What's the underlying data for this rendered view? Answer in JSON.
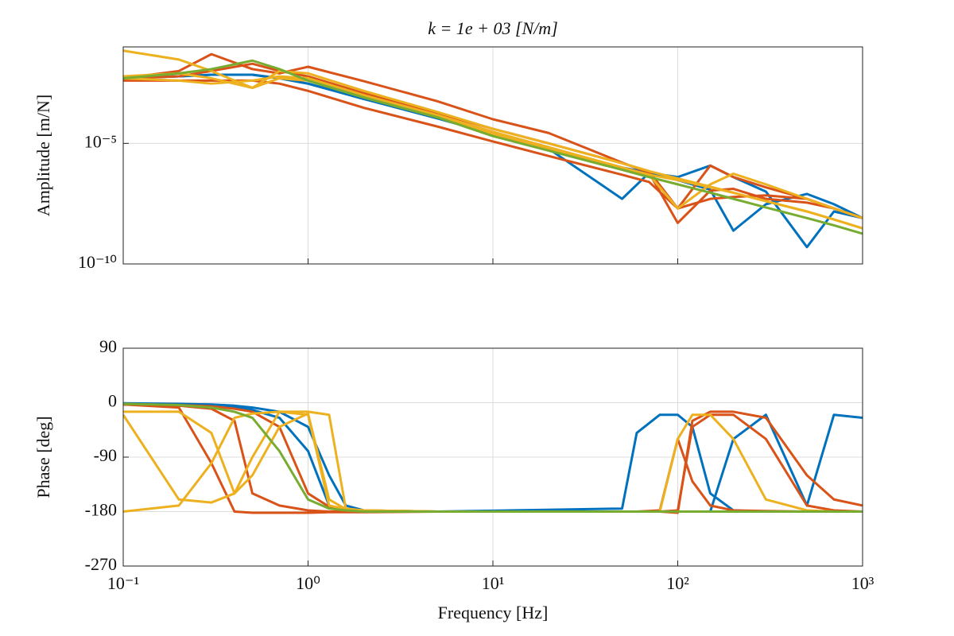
{
  "chart_data": [
    {
      "type": "line",
      "title": "k = 1e + 03 [N/m]",
      "ylabel": "Amplitude [m/N]",
      "xscale": "log",
      "yscale": "log",
      "grid": true,
      "xlim": [
        0.1,
        1000
      ],
      "ylim": [
        1e-10,
        0.1
      ],
      "xticks": [
        0.1,
        1,
        10,
        100,
        1000
      ],
      "yticks": [
        {
          "value": 1e-10,
          "label": "10⁻¹⁰"
        },
        {
          "value": 1e-05,
          "label": "10⁻⁵"
        }
      ],
      "x": [
        0.1,
        0.2,
        0.3,
        0.5,
        0.7,
        1,
        2,
        5,
        10,
        20,
        50,
        70,
        100,
        150,
        200,
        300,
        500,
        700,
        1000
      ],
      "series": [
        {
          "color": "#0072bd",
          "values": [
            0.005,
            0.006,
            0.007,
            0.007,
            0.005,
            0.003,
            0.0007,
            0.00011,
            2.5e-05,
            6e-06,
            5e-08,
            6e-07,
            4e-07,
            1.2e-06,
            4e-07,
            1e-07,
            5e-10,
            1.5e-08,
            8e-09
          ]
        },
        {
          "color": "#0072bd",
          "values": [
            0.005,
            0.006,
            0.007,
            0.007,
            0.005,
            0.003,
            0.0007,
            0.00011,
            2.5e-05,
            6e-06,
            1e-06,
            6e-07,
            3e-07,
            1.2e-07,
            2.4e-09,
            3e-08,
            8e-08,
            3e-08,
            8e-09
          ]
        },
        {
          "color": "#d95319",
          "values": [
            0.005,
            0.01,
            0.05,
            0.012,
            0.008,
            0.015,
            0.0038,
            0.00056,
            0.0001,
            2.7e-05,
            1.6e-06,
            6e-07,
            5e-09,
            1.1e-07,
            1.3e-07,
            5e-08,
            3.5e-08,
            2e-08,
            8e-09
          ]
        },
        {
          "color": "#d95319",
          "values": [
            0.005,
            0.006,
            0.01,
            0.02,
            0.01,
            0.006,
            0.0012,
            0.00018,
            4e-05,
            1e-05,
            1.5e-06,
            7e-07,
            2e-08,
            1.2e-06,
            4e-07,
            1.5e-07,
            5e-08,
            2e-08,
            8e-09
          ]
        },
        {
          "color": "#d95319",
          "values": [
            0.004,
            0.004,
            0.004,
            0.004,
            0.003,
            0.0015,
            0.0003,
            5e-05,
            1.2e-05,
            3e-06,
            5e-07,
            2.5e-07,
            2e-08,
            5e-08,
            6e-08,
            7e-08,
            5e-08,
            2e-08,
            8e-09
          ]
        },
        {
          "color": "#edb120",
          "values": [
            0.07,
            0.03,
            0.01,
            0.002,
            0.005,
            0.004,
            0.0008,
            0.00012,
            2.5e-05,
            6e-06,
            1e-06,
            5e-07,
            2e-08,
            2e-07,
            5.5e-07,
            2e-07,
            5e-08,
            2e-08,
            8e-09
          ]
        },
        {
          "color": "#edb120",
          "values": [
            0.005,
            0.004,
            0.003,
            0.004,
            0.006,
            0.005,
            0.001,
            0.00015,
            3e-05,
            7e-06,
            1e-06,
            5e-07,
            3e-07,
            1.5e-07,
            9e-08,
            4e-08,
            1.5e-08,
            7e-09,
            3e-09
          ]
        },
        {
          "color": "#edb120",
          "values": [
            0.006,
            0.008,
            0.005,
            0.002,
            0.01,
            0.008,
            0.0015,
            0.0002,
            4e-05,
            1e-05,
            1.5e-06,
            7e-07,
            3.5e-07,
            1.6e-07,
            9e-08,
            4e-08,
            1.5e-08,
            7e-09,
            3e-09
          ]
        },
        {
          "color": "#77ac30",
          "values": [
            0.005,
            0.008,
            0.012,
            0.027,
            0.012,
            0.004,
            0.0008,
            0.00012,
            2e-05,
            5e-06,
            8e-07,
            4e-07,
            2e-07,
            9e-08,
            5e-08,
            2.2e-08,
            8e-09,
            4e-09,
            1.8e-09
          ]
        }
      ]
    },
    {
      "type": "line",
      "xlabel": "Frequency [Hz]",
      "ylabel": "Phase [deg]",
      "xscale": "log",
      "grid": true,
      "xlim": [
        0.1,
        1000
      ],
      "ylim": [
        -270,
        90
      ],
      "xticks": [
        {
          "value": 0.1,
          "label": "10⁻¹"
        },
        {
          "value": 1,
          "label": "10⁰"
        },
        {
          "value": 10,
          "label": "10¹"
        },
        {
          "value": 100,
          "label": "10²"
        },
        {
          "value": 1000,
          "label": "10³"
        }
      ],
      "yticks": [
        -270,
        -180,
        -90,
        0,
        90
      ],
      "x": [
        0.1,
        0.2,
        0.3,
        0.4,
        0.5,
        0.7,
        1,
        1.3,
        1.6,
        2,
        5,
        50,
        60,
        80,
        100,
        120,
        150,
        200,
        300,
        500,
        700,
        1000
      ],
      "series": [
        {
          "color": "#0072bd",
          "values": [
            -2,
            -3,
            -5,
            -8,
            -12,
            -25,
            -80,
            -170,
            -178,
            -180,
            -180,
            -175,
            -50,
            -20,
            -20,
            -40,
            -150,
            -178,
            -180,
            -180,
            -180,
            -180
          ]
        },
        {
          "color": "#0072bd",
          "values": [
            -1,
            -2,
            -3,
            -5,
            -8,
            -15,
            -40,
            -120,
            -170,
            -178,
            -180,
            -180,
            -180,
            -180,
            -180,
            -180,
            -180,
            -60,
            -20,
            -170,
            -20,
            -25
          ]
        },
        {
          "color": "#d95319",
          "values": [
            -3,
            -8,
            -100,
            -180,
            -182,
            -182,
            -182,
            -181,
            -181,
            -181,
            -180,
            -180,
            -180,
            -180,
            -182,
            -30,
            -15,
            -15,
            -25,
            -120,
            -160,
            -170
          ]
        },
        {
          "color": "#d95319",
          "values": [
            -3,
            -5,
            -10,
            -30,
            -150,
            -170,
            -178,
            -180,
            -180,
            -180,
            -180,
            -180,
            -180,
            -178,
            -60,
            -130,
            -170,
            -178,
            -179,
            -180,
            -180,
            -180
          ]
        },
        {
          "color": "#d95319",
          "values": [
            -2,
            -4,
            -6,
            -10,
            -15,
            -40,
            -150,
            -172,
            -178,
            -180,
            -180,
            -180,
            -180,
            -180,
            -178,
            -40,
            -20,
            -20,
            -60,
            -170,
            -178,
            -180
          ]
        },
        {
          "color": "#edb120",
          "values": [
            -180,
            -170,
            -100,
            -25,
            -18,
            -15,
            -20,
            -170,
            -176,
            -178,
            -180,
            -180,
            -180,
            -180,
            -180,
            -180,
            -180,
            -180,
            -180,
            -180,
            -180,
            -180
          ]
        },
        {
          "color": "#edb120",
          "values": [
            -15,
            -15,
            -50,
            -150,
            -120,
            -40,
            -18,
            -160,
            -176,
            -178,
            -180,
            -180,
            -180,
            -180,
            -180,
            -180,
            -180,
            -180,
            -180,
            -180,
            -180,
            -180
          ]
        },
        {
          "color": "#edb120",
          "values": [
            -20,
            -160,
            -165,
            -150,
            -90,
            -15,
            -15,
            -20,
            -175,
            -178,
            -180,
            -180,
            -180,
            -180,
            -60,
            -20,
            -20,
            -60,
            -160,
            -178,
            -180,
            -180
          ]
        },
        {
          "color": "#77ac30",
          "values": [
            -2,
            -4,
            -8,
            -15,
            -25,
            -80,
            -160,
            -175,
            -178,
            -180,
            -180,
            -180,
            -180,
            -180,
            -180,
            -180,
            -180,
            -180,
            -180,
            -180,
            -180,
            -180
          ]
        }
      ]
    }
  ]
}
